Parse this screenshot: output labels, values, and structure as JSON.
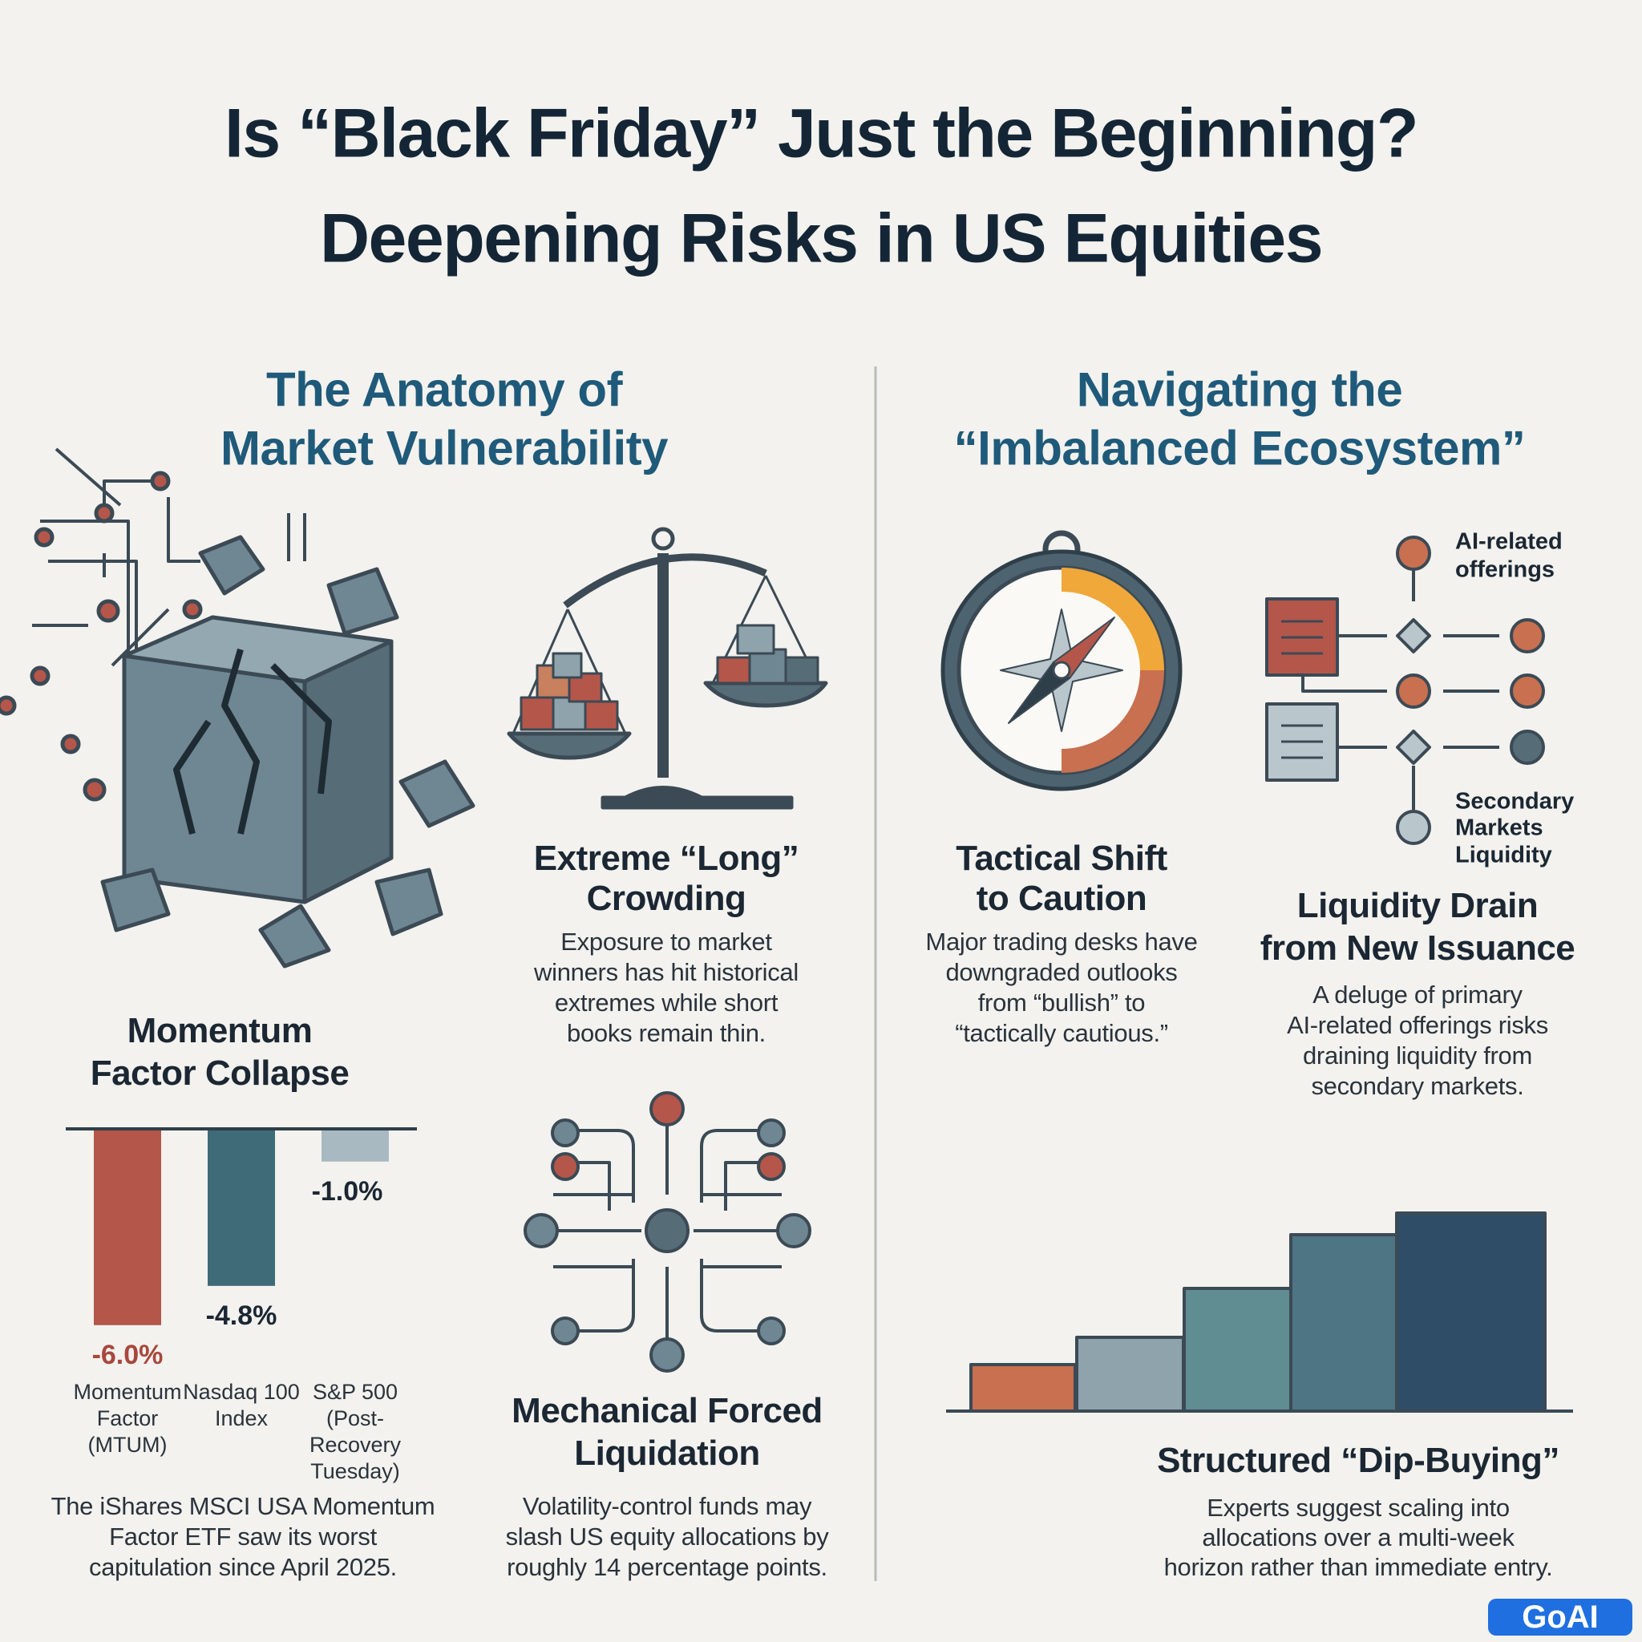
{
  "header": {
    "title_lines": [
      "Is “Black Friday” Just the Beginning?",
      "Deepening Risks in US Equities"
    ]
  },
  "left": {
    "heading_lines": [
      "The Anatomy of",
      "Market Vulnerability"
    ],
    "crowding": {
      "title_lines": [
        "Extreme “Long”",
        "Crowding"
      ],
      "body_lines": [
        "Exposure to market",
        "winners has hit historical",
        "extremes while short",
        "books remain thin."
      ]
    },
    "momentum": {
      "title_lines": [
        "Momentum",
        "Factor Collapse"
      ],
      "chart_data": {
        "type": "bar",
        "categories": [
          "Momentum Factor (MTUM)",
          "Nasdaq 100 Index",
          "S&P 500 (Post-Recovery Tuesday)"
        ],
        "values": [
          -6.0,
          -4.8,
          -1.0
        ],
        "value_labels": [
          "-6.0%",
          "-4.8%",
          "-1.0%"
        ],
        "colors": [
          "#b5564a",
          "#3f6b78",
          "#a9b9c2"
        ],
        "label_colors": [
          "#a9473c",
          "#1b2733",
          "#1b2733"
        ]
      },
      "body_lines": [
        "The iShares MSCI USA Momentum",
        "Factor ETF saw its worst",
        "capitulation since April 2025."
      ]
    },
    "liquidation": {
      "title_lines": [
        "Mechanical Forced",
        "Liquidation"
      ],
      "body_lines": [
        "Volatility-control funds may",
        "slash US equity allocations by",
        "roughly 14 percentage points."
      ]
    }
  },
  "right": {
    "heading_lines": [
      "Navigating the",
      "“Imbalanced Ecosystem”"
    ],
    "caution": {
      "title_lines": [
        "Tactical Shift",
        "to Caution"
      ],
      "body_lines": [
        "Major trading desks have",
        "downgraded outlooks",
        "from “bullish” to",
        "“tactically cautious.”"
      ]
    },
    "diagram": {
      "top_label_lines": [
        "AI-related",
        "offerings"
      ],
      "bottom_label_lines": [
        "Secondary",
        "Markets",
        "Liquidity"
      ]
    },
    "drain": {
      "title_lines": [
        "Liquidity Drain",
        "from New Issuance"
      ],
      "body_lines": [
        "A deluge of primary",
        "AI-related offerings risks",
        "draining liquidity from",
        "secondary markets."
      ]
    },
    "dip": {
      "title": "Structured “Dip-Buying”",
      "body_lines": [
        "Experts suggest scaling into",
        "allocations over a multi-week",
        "horizon rather than immediate entry."
      ]
    }
  },
  "logo": "GoAI"
}
